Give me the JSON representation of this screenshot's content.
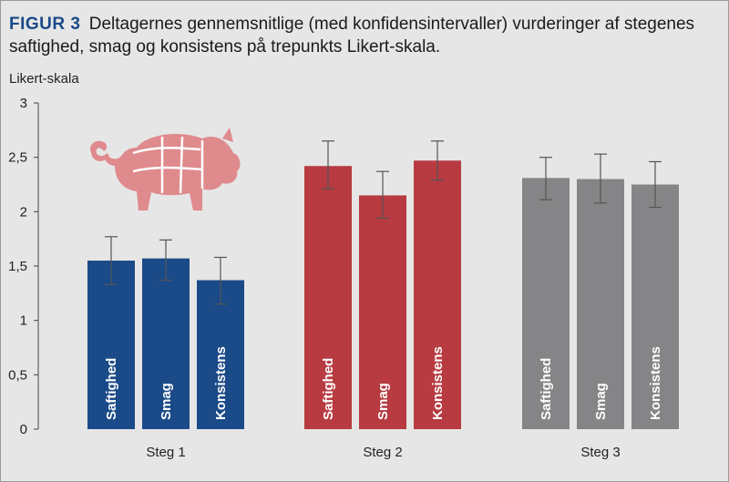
{
  "figure": {
    "label": "FIGUR 3",
    "caption": "Deltagernes gennemsnitlige (med konfidensintervaller) vurderinger af stegenes saftighed, smag og konsistens på trepunkts Likert-skala."
  },
  "pig_icon": {
    "name": "pig-icon",
    "color": "#df8a8d"
  },
  "chart_data": {
    "type": "bar",
    "ylabel": "Likert-skala",
    "ylim": [
      0,
      3
    ],
    "yticks": [
      "0",
      "0,5",
      "1",
      "1,5",
      "2",
      "2,5",
      "3"
    ],
    "groups": [
      {
        "name": "Steg 1",
        "color": "#1a4a87",
        "bars": [
          {
            "label": "Saftighed",
            "value": 1.55,
            "ci_low": 1.33,
            "ci_high": 1.77
          },
          {
            "label": "Smag",
            "value": 1.57,
            "ci_low": 1.37,
            "ci_high": 1.74
          },
          {
            "label": "Konsistens",
            "value": 1.37,
            "ci_low": 1.15,
            "ci_high": 1.58
          }
        ]
      },
      {
        "name": "Steg 2",
        "color": "#b73b41",
        "bars": [
          {
            "label": "Saftighed",
            "value": 2.42,
            "ci_low": 2.21,
            "ci_high": 2.65
          },
          {
            "label": "Smag",
            "value": 2.15,
            "ci_low": 1.94,
            "ci_high": 2.37
          },
          {
            "label": "Konsistens",
            "value": 2.47,
            "ci_low": 2.29,
            "ci_high": 2.65
          }
        ]
      },
      {
        "name": "Steg 3",
        "color": "#858587",
        "bars": [
          {
            "label": "Saftighed",
            "value": 2.31,
            "ci_low": 2.11,
            "ci_high": 2.5
          },
          {
            "label": "Smag",
            "value": 2.3,
            "ci_low": 2.08,
            "ci_high": 2.53
          },
          {
            "label": "Konsistens",
            "value": 2.25,
            "ci_low": 2.04,
            "ci_high": 2.46
          }
        ]
      }
    ],
    "grid": false
  }
}
